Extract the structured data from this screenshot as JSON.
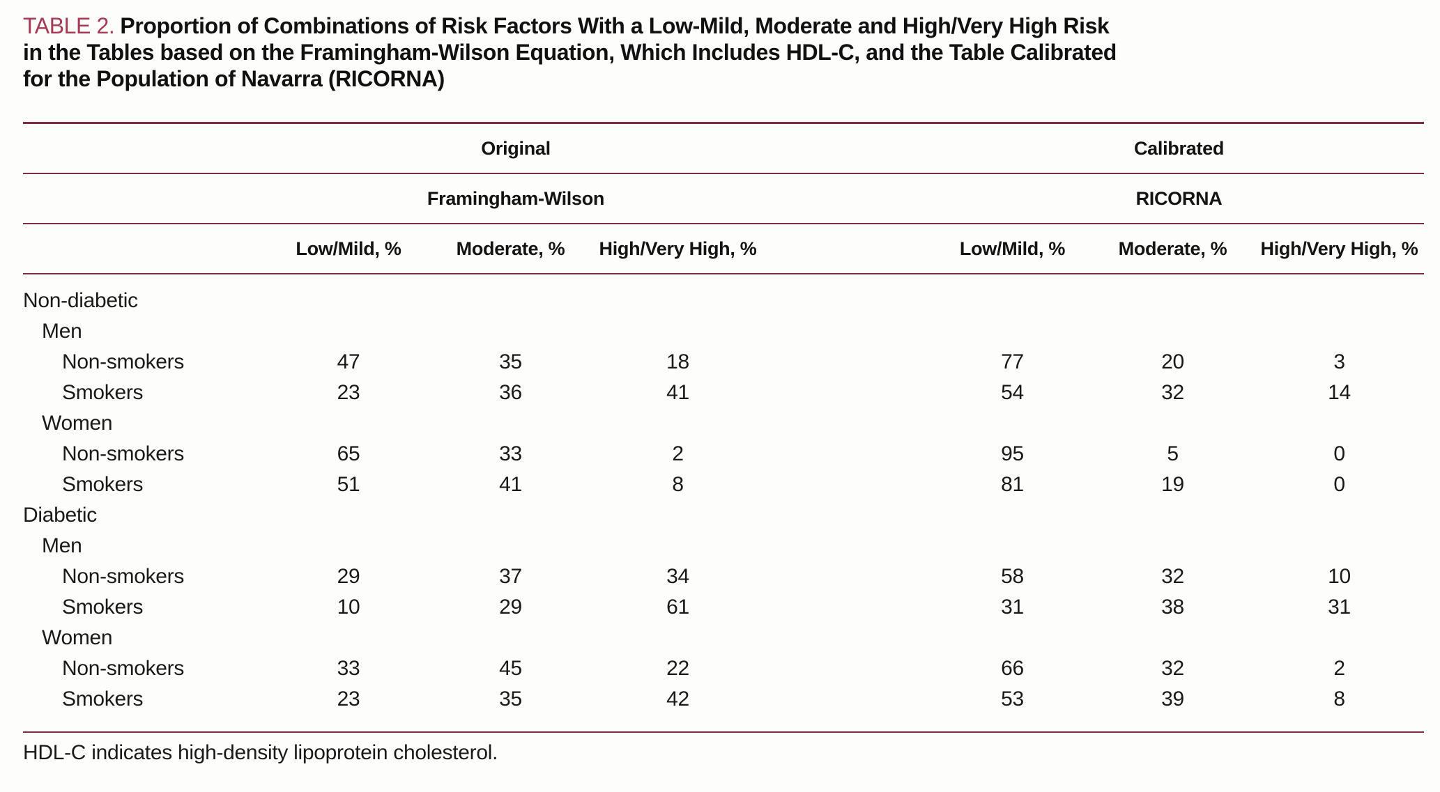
{
  "title": {
    "label": "TABLE 2.",
    "lines": [
      "Proportion of Combinations of Risk Factors With a Low-Mild, Moderate and High/Very High Risk",
      "in the Tables based on the Framingham-Wilson Equation, Which Includes HDL-C, and the Table Calibrated",
      "for the Population of Navarra (RICORNA)"
    ]
  },
  "table": {
    "group_headers": {
      "original": "Original",
      "calibrated": "Calibrated"
    },
    "method_headers": {
      "original": "Framingham-Wilson",
      "calibrated": "RICORNA"
    },
    "column_headers": {
      "original": [
        "Low/Mild, %",
        "Moderate, %",
        "High/Very High, %"
      ],
      "calibrated": [
        "Low/Mild, %",
        "Moderate, %",
        "High/Very High, %"
      ]
    },
    "rows": [
      {
        "label": "Non-diabetic",
        "indent": 0,
        "original": null,
        "calibrated": null
      },
      {
        "label": "Men",
        "indent": 1,
        "original": null,
        "calibrated": null
      },
      {
        "label": "Non-smokers",
        "indent": 2,
        "original": [
          47,
          35,
          18
        ],
        "calibrated": [
          77,
          20,
          3
        ]
      },
      {
        "label": "Smokers",
        "indent": 2,
        "original": [
          23,
          36,
          41
        ],
        "calibrated": [
          54,
          32,
          14
        ]
      },
      {
        "label": "Women",
        "indent": 1,
        "original": null,
        "calibrated": null
      },
      {
        "label": "Non-smokers",
        "indent": 2,
        "original": [
          65,
          33,
          2
        ],
        "calibrated": [
          95,
          5,
          0
        ]
      },
      {
        "label": "Smokers",
        "indent": 2,
        "original": [
          51,
          41,
          8
        ],
        "calibrated": [
          81,
          19,
          0
        ]
      },
      {
        "label": "Diabetic",
        "indent": 0,
        "original": null,
        "calibrated": null
      },
      {
        "label": "Men",
        "indent": 1,
        "original": null,
        "calibrated": null
      },
      {
        "label": "Non-smokers",
        "indent": 2,
        "original": [
          29,
          37,
          34
        ],
        "calibrated": [
          58,
          32,
          10
        ]
      },
      {
        "label": "Smokers",
        "indent": 2,
        "original": [
          10,
          29,
          61
        ],
        "calibrated": [
          31,
          38,
          31
        ]
      },
      {
        "label": "Women",
        "indent": 1,
        "original": null,
        "calibrated": null
      },
      {
        "label": "Non-smokers",
        "indent": 2,
        "original": [
          33,
          45,
          22
        ],
        "calibrated": [
          66,
          32,
          2
        ]
      },
      {
        "label": "Smokers",
        "indent": 2,
        "original": [
          23,
          35,
          42
        ],
        "calibrated": [
          53,
          39,
          8
        ]
      }
    ]
  },
  "footnote": "HDL-C indicates high-density lipoprotein cholesterol.",
  "colors": {
    "accent": "#a63a55",
    "rule": "#7e2c43"
  }
}
